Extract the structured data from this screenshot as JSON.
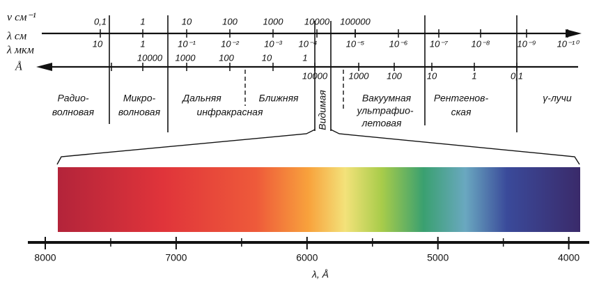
{
  "axis_labels": {
    "nu": "ν см⁻¹",
    "lambda_cm": "λ см",
    "lambda_um": "λ мкм",
    "angstrom": "Å"
  },
  "nu_ticks": [
    "0,1",
    "1",
    "10",
    "100",
    "1000",
    "10000",
    "100000"
  ],
  "lambda_cm_ticks": [
    "10",
    "1",
    "10⁻¹",
    "10⁻²",
    "10⁻³",
    "10⁻⁴",
    "10⁻⁵",
    "10⁻⁶",
    "10⁻⁷",
    "10⁻⁸",
    "10⁻⁹",
    "10⁻¹⁰"
  ],
  "lambda_um_ticks": [
    "10000",
    "1000",
    "100",
    "10",
    "1"
  ],
  "angstrom_ticks": [
    "10000",
    "1000",
    "100",
    "10",
    "1",
    "0,1"
  ],
  "regions": [
    [
      "Радио-",
      "волновая"
    ],
    [
      "Микро-",
      "волновая"
    ],
    [
      "Дальняя",
      "инфракрасная"
    ],
    [
      "Ближняя"
    ],
    [
      "Видимая"
    ],
    [
      "Вакуумная",
      "ультрафио-",
      "летовая"
    ],
    [
      "Рентгенов-",
      "ская"
    ],
    [
      "γ-лучи"
    ]
  ],
  "visible_axis": {
    "ticks": [
      8000,
      7000,
      6000,
      5000,
      4000
    ],
    "label": "λ, Å"
  }
}
